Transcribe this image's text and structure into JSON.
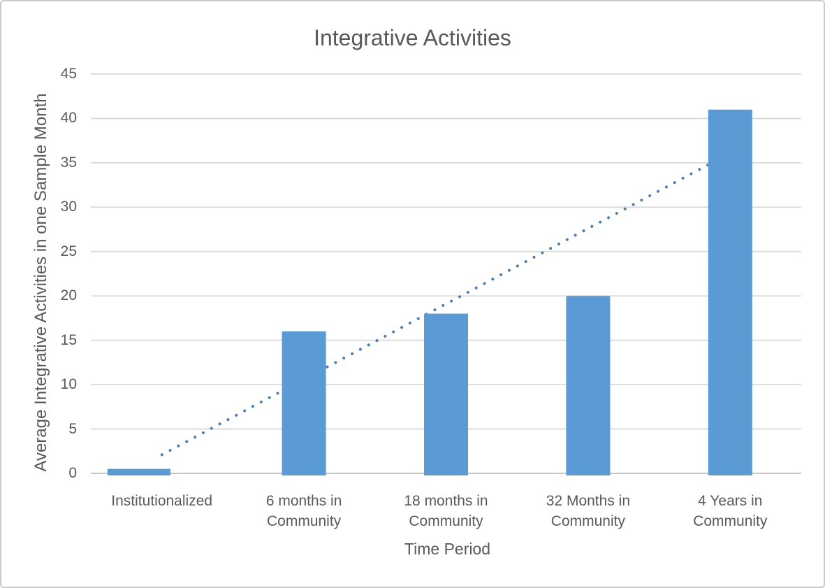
{
  "window": {
    "background": "#ffffff",
    "border_color": "#cbcbcb"
  },
  "chart_data": {
    "type": "bar",
    "title": "Integrative Activities",
    "categories": [
      "Institutionalized",
      "6 months in Community",
      "18 months in Community",
      "32 Months in Community",
      "4 Years in Community"
    ],
    "values": [
      0.5,
      16,
      18,
      20,
      41
    ],
    "xlabel": "Time Period",
    "ylabel": "Average Integrative Activities in one Sample Month",
    "ylim": [
      0,
      45
    ],
    "yticks": [
      0,
      5,
      10,
      15,
      20,
      25,
      30,
      35,
      40,
      45
    ],
    "grid": true,
    "legend": "none",
    "trendline": {
      "type": "linear",
      "style": "dotted",
      "start": {
        "category_index": 0,
        "value": 2.1
      },
      "end": {
        "category_index": 4,
        "value": 36.1
      }
    },
    "colors": {
      "bar_fill": "#5b9bd5",
      "trendline": "#4a7ebb",
      "text": "#595959",
      "gridline": "#d9d9d9",
      "axis_line": "#bfbfbf"
    }
  }
}
